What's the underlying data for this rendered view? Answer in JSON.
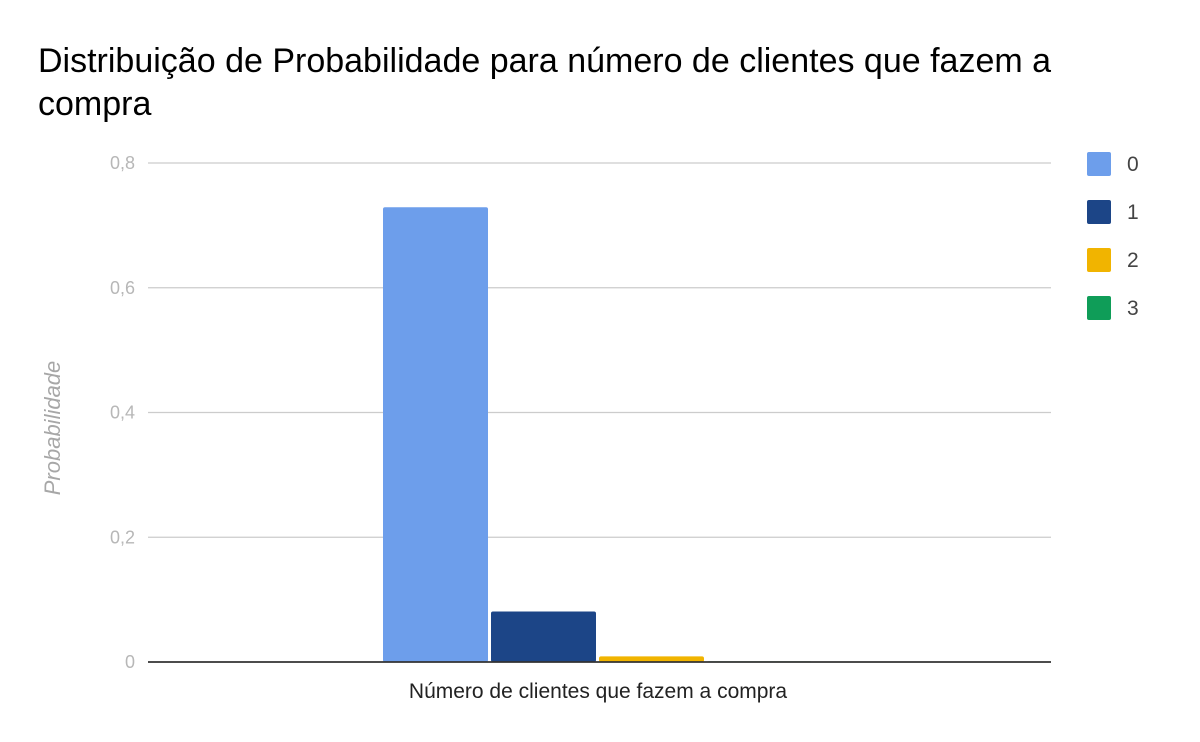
{
  "chart_data": {
    "type": "bar",
    "title_lines": [
      "Distribuição de Probabilidade para número de clientes que fazem a",
      "compra"
    ],
    "xlabel": "Número de clientes que fazem a compra",
    "ylabel": "Probabilidade",
    "ylim": [
      0,
      0.8
    ],
    "yticks": [
      0,
      0.2,
      0.4,
      0.6,
      0.8
    ],
    "ytick_labels": [
      "0",
      "0,2",
      "0,4",
      "0,6",
      "0,8"
    ],
    "grid": true,
    "legend_position": "right",
    "series": [
      {
        "name": "0",
        "value": 0.729,
        "color": "#6d9eeb"
      },
      {
        "name": "1",
        "value": 0.081,
        "color": "#1c4587"
      },
      {
        "name": "2",
        "value": 0.009,
        "color": "#f1b400"
      },
      {
        "name": "3",
        "value": 0.001,
        "color": "#0f9d58"
      }
    ]
  }
}
